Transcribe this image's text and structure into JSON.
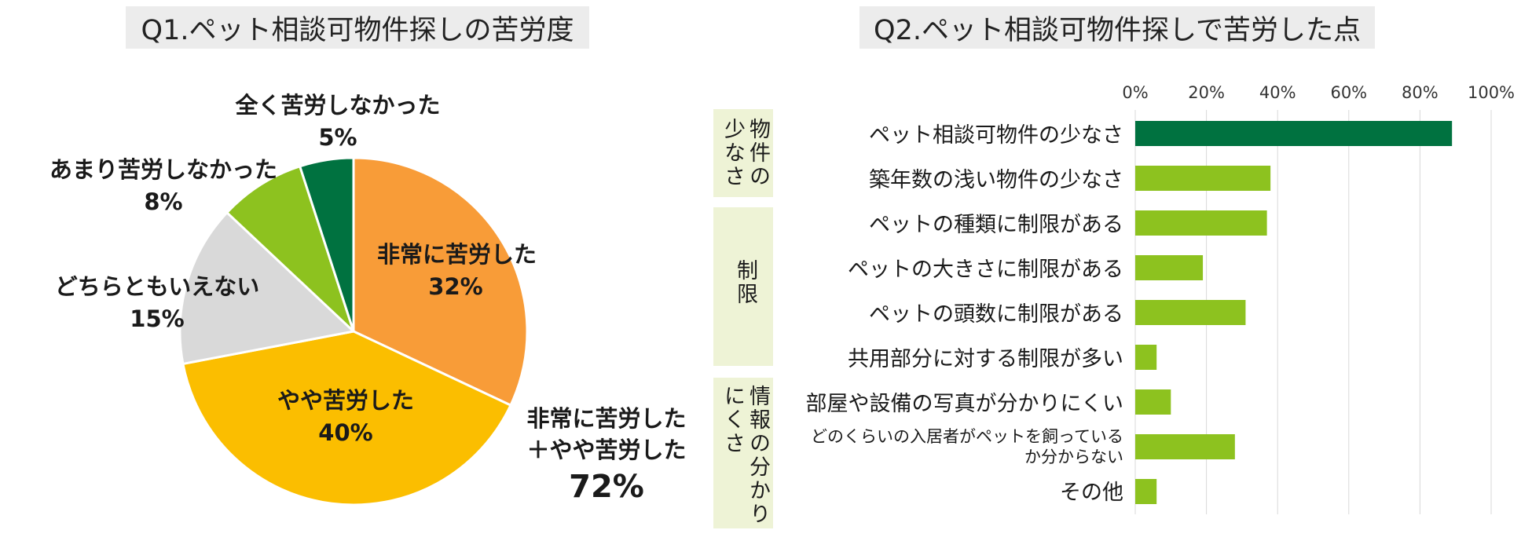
{
  "q1": {
    "title": "Q1.ペット相談可物件探しの苦労度",
    "annotation": {
      "line1": "非常に苦労した",
      "line2": "＋やや苦労した",
      "value": "72%"
    }
  },
  "q2": {
    "title": "Q2.ペット相談可物件探しで苦労した点",
    "groups": [
      {
        "label": "物件の少なさ"
      },
      {
        "label": "制限"
      },
      {
        "label": "情報の分かりにくさ"
      }
    ]
  },
  "colors": {
    "very_hard": "#f89c38",
    "somewhat_hard": "#fbbe00",
    "neither": "#d9d9d9",
    "not_very": "#8dc21f",
    "not_at_all": "#007240",
    "bar_highlight": "#007240",
    "bar_default": "#8dc21f",
    "group_bg": "#eef3d6"
  },
  "chart_data": [
    {
      "type": "pie",
      "title": "Q1.ペット相談可物件探しの苦労度",
      "slices": [
        {
          "label": "非常に苦労した",
          "value": 32,
          "value_text": "32%"
        },
        {
          "label": "やや苦労した",
          "value": 40,
          "value_text": "40%"
        },
        {
          "label": "どちらともいえない",
          "value": 15,
          "value_text": "15%"
        },
        {
          "label": "あまり苦労しなかった",
          "value": 8,
          "value_text": "8%"
        },
        {
          "label": "全く苦労しなかった",
          "value": 5,
          "value_text": "5%"
        }
      ]
    },
    {
      "type": "bar",
      "orientation": "horizontal",
      "title": "Q2.ペット相談可物件探しで苦労した点",
      "xlim": [
        0,
        100
      ],
      "ticks": [
        "0%",
        "20%",
        "40%",
        "60%",
        "80%",
        "100%"
      ],
      "grid": true,
      "categories": [
        "ペット相談可物件の少なさ",
        "築年数の浅い物件の少なさ",
        "ペットの種類に制限がある",
        "ペットの大きさに制限がある",
        "ペットの頭数に制限がある",
        "共用部分に対する制限が多い",
        "部屋や設備の写真が分かりにくい",
        "どのくらいの入居者がペットを飼っているか分からない",
        "その他"
      ],
      "category_lines": [
        [
          "ペット相談可物件の少なさ"
        ],
        [
          "築年数の浅い物件の少なさ"
        ],
        [
          "ペットの種類に制限がある"
        ],
        [
          "ペットの大きさに制限がある"
        ],
        [
          "ペットの頭数に制限がある"
        ],
        [
          "共用部分に対する制限が多い"
        ],
        [
          "部屋や設備の写真が分かりにくい"
        ],
        [
          "どのくらいの入居者がペットを飼っている",
          "か分からない"
        ],
        [
          "その他"
        ]
      ],
      "values": [
        89,
        38,
        37,
        19,
        31,
        6,
        10,
        28,
        6
      ]
    }
  ]
}
